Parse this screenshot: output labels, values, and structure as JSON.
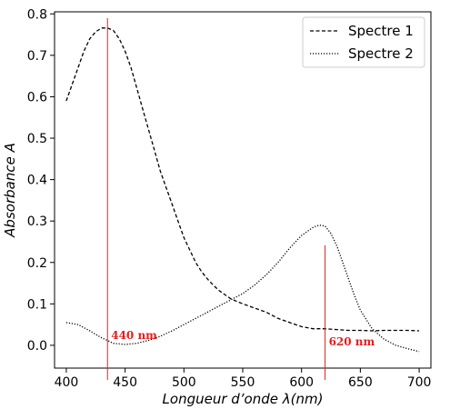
{
  "chart_data": {
    "type": "line",
    "xlabel": "Longueur d’onde λ(nm)",
    "ylabel": "Absorbance A",
    "xlim": [
      390,
      710
    ],
    "ylim": [
      -0.055,
      0.805
    ],
    "xticks": [
      400,
      450,
      500,
      550,
      600,
      650,
      700
    ],
    "xtick_labels": [
      "400",
      "450",
      "500",
      "550",
      "600",
      "650",
      "700"
    ],
    "yticks": [
      0.0,
      0.1,
      0.2,
      0.3,
      0.4,
      0.5,
      0.6,
      0.7,
      0.8
    ],
    "ytick_labels": [
      "0.0",
      "0.1",
      "0.2",
      "0.3",
      "0.4",
      "0.5",
      "0.6",
      "0.7",
      "0.8"
    ],
    "grid": false,
    "legend_position": "top-right",
    "series": [
      {
        "name": "Spectre 1",
        "style": "dashed",
        "color": "#000000",
        "x": [
          400,
          405,
          410,
          415,
          420,
          425,
          430,
          435,
          440,
          445,
          450,
          455,
          460,
          465,
          470,
          475,
          480,
          485,
          490,
          495,
          500,
          505,
          510,
          515,
          520,
          525,
          530,
          540,
          550,
          560,
          570,
          580,
          590,
          600,
          610,
          620,
          630,
          640,
          650,
          660,
          670,
          680,
          690,
          700
        ],
        "y": [
          0.59,
          0.63,
          0.67,
          0.71,
          0.74,
          0.757,
          0.766,
          0.766,
          0.76,
          0.74,
          0.71,
          0.67,
          0.62,
          0.57,
          0.52,
          0.47,
          0.42,
          0.38,
          0.34,
          0.3,
          0.26,
          0.23,
          0.2,
          0.178,
          0.16,
          0.145,
          0.132,
          0.112,
          0.1,
          0.09,
          0.08,
          0.065,
          0.055,
          0.045,
          0.04,
          0.04,
          0.038,
          0.036,
          0.036,
          0.035,
          0.036,
          0.036,
          0.036,
          0.035
        ]
      },
      {
        "name": "Spectre 2",
        "style": "dotted",
        "color": "#000000",
        "x": [
          400,
          410,
          420,
          430,
          440,
          450,
          460,
          470,
          480,
          490,
          500,
          510,
          520,
          530,
          540,
          550,
          560,
          570,
          580,
          590,
          600,
          610,
          615,
          620,
          625,
          630,
          635,
          640,
          645,
          650,
          660,
          670,
          680,
          690,
          700
        ],
        "y": [
          0.055,
          0.05,
          0.035,
          0.018,
          0.005,
          0.002,
          0.005,
          0.012,
          0.022,
          0.035,
          0.05,
          0.065,
          0.08,
          0.095,
          0.11,
          0.125,
          0.145,
          0.17,
          0.2,
          0.235,
          0.265,
          0.285,
          0.29,
          0.288,
          0.27,
          0.24,
          0.2,
          0.16,
          0.12,
          0.085,
          0.04,
          0.015,
          0.0,
          -0.008,
          -0.015
        ]
      }
    ],
    "annotations": [
      {
        "text": "440 nm",
        "x": 435,
        "color": "#e41e1e"
      },
      {
        "text": "620 nm",
        "x": 620,
        "color": "#e41e1e"
      }
    ]
  }
}
